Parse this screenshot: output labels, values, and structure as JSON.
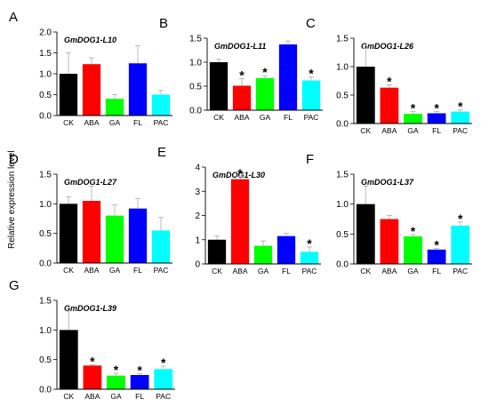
{
  "figure": {
    "ylabel": "Relative expression level"
  },
  "chart_data": [
    {
      "type": "bar",
      "panel_letter": "A",
      "title": "GmDOG1-L10",
      "categories": [
        "CK",
        "ABA",
        "GA",
        "FL",
        "PAC"
      ],
      "values": [
        1.0,
        1.23,
        0.4,
        1.25,
        0.5
      ],
      "errors": [
        0.5,
        0.15,
        0.1,
        0.42,
        0.1
      ],
      "significant": [
        false,
        false,
        false,
        false,
        false
      ],
      "ylim": [
        0,
        2.0
      ],
      "yticks": [
        "0.0",
        "0.5",
        "1.0",
        "1.5",
        "2.0"
      ],
      "colors": [
        "#000000",
        "#ff0000",
        "#00ff00",
        "#0000ff",
        "#00ffff"
      ]
    },
    {
      "type": "bar",
      "panel_letter": "B",
      "title": "GmDOG1-L11",
      "categories": [
        "CK",
        "ABA",
        "GA",
        "FL",
        "PAC"
      ],
      "values": [
        1.0,
        0.51,
        0.67,
        1.37,
        0.62
      ],
      "errors": [
        0.06,
        0.15,
        0.05,
        0.07,
        0.07
      ],
      "significant": [
        false,
        true,
        true,
        false,
        true
      ],
      "ylim": [
        0,
        1.5
      ],
      "yticks": [
        "0.0",
        "0.5",
        "1.0",
        "1.5"
      ],
      "colors": [
        "#000000",
        "#ff0000",
        "#00ff00",
        "#0000ff",
        "#00ffff"
      ]
    },
    {
      "type": "bar",
      "panel_letter": "C",
      "title": "GmDOG1-L26",
      "categories": [
        "CK",
        "ABA",
        "GA",
        "FL",
        "PAC"
      ],
      "values": [
        1.0,
        0.63,
        0.17,
        0.18,
        0.21
      ],
      "errors": [
        0.32,
        0.05,
        0.04,
        0.03,
        0.03
      ],
      "significant": [
        false,
        true,
        true,
        true,
        true
      ],
      "ylim": [
        0,
        1.5
      ],
      "yticks": [
        "0.0",
        "0.5",
        "1.0",
        "1.5"
      ],
      "colors": [
        "#000000",
        "#ff0000",
        "#00ff00",
        "#0000ff",
        "#00ffff"
      ]
    },
    {
      "type": "bar",
      "panel_letter": "D",
      "title": "GmDOG1-L27",
      "categories": [
        "CK",
        "ABA",
        "GA",
        "FL",
        "PAC"
      ],
      "values": [
        1.0,
        1.05,
        0.8,
        0.92,
        0.55
      ],
      "errors": [
        0.12,
        0.25,
        0.18,
        0.17,
        0.22
      ],
      "significant": [
        false,
        false,
        false,
        false,
        false
      ],
      "ylim": [
        0,
        1.5
      ],
      "yticks": [
        "0.0",
        "0.5",
        "1.0",
        "1.5"
      ],
      "colors": [
        "#000000",
        "#ff0000",
        "#00ff00",
        "#0000ff",
        "#00ffff"
      ]
    },
    {
      "type": "bar",
      "panel_letter": "E",
      "title": "GmDOG1-L30",
      "categories": [
        "CK",
        "ABA",
        "GA",
        "FL",
        "PAC"
      ],
      "values": [
        1.0,
        3.5,
        0.75,
        1.15,
        0.5
      ],
      "errors": [
        0.15,
        0.1,
        0.2,
        0.12,
        0.2
      ],
      "significant": [
        false,
        true,
        false,
        false,
        true
      ],
      "ylim": [
        0,
        4
      ],
      "yticks": [
        "0",
        "1",
        "2",
        "3",
        "4"
      ],
      "colors": [
        "#000000",
        "#ff0000",
        "#00ff00",
        "#0000ff",
        "#00ffff"
      ]
    },
    {
      "type": "bar",
      "panel_letter": "F",
      "title": "GmDOG1-L37",
      "categories": [
        "CK",
        "ABA",
        "GA",
        "FL",
        "PAC"
      ],
      "values": [
        1.0,
        0.75,
        0.46,
        0.24,
        0.64
      ],
      "errors": [
        0.3,
        0.06,
        0.03,
        0.02,
        0.06
      ],
      "significant": [
        false,
        false,
        true,
        true,
        true
      ],
      "ylim": [
        0,
        1.5
      ],
      "yticks": [
        "0.0",
        "0.5",
        "1.0",
        "1.5"
      ],
      "colors": [
        "#000000",
        "#ff0000",
        "#00ff00",
        "#0000ff",
        "#00ffff"
      ]
    },
    {
      "type": "bar",
      "panel_letter": "G",
      "title": "GmDOG1-L39",
      "categories": [
        "CK",
        "ABA",
        "GA",
        "FL",
        "PAC"
      ],
      "values": [
        1.0,
        0.4,
        0.23,
        0.24,
        0.34
      ],
      "errors": [
        0.32,
        0.01,
        0.04,
        0.02,
        0.05
      ],
      "significant": [
        false,
        true,
        true,
        true,
        true
      ],
      "ylim": [
        0,
        1.5
      ],
      "yticks": [
        "0.0",
        "0.5",
        "1.0",
        "1.5"
      ],
      "colors": [
        "#000000",
        "#ff0000",
        "#00ff00",
        "#0000ff",
        "#00ffff"
      ]
    }
  ]
}
